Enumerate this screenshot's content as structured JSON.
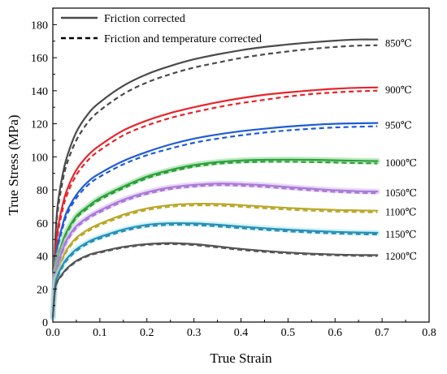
{
  "chart_data": {
    "type": "line",
    "xlabel": "True Strain",
    "ylabel": "True Stress (MPa)",
    "xlim": [
      0,
      0.8
    ],
    "ylim": [
      0,
      190
    ],
    "xticks": [
      "0.0",
      "0.1",
      "0.2",
      "0.3",
      "0.4",
      "0.5",
      "0.6",
      "0.7",
      "0.8"
    ],
    "yticks": [
      "0",
      "20",
      "40",
      "60",
      "80",
      "100",
      "120",
      "140",
      "160",
      "180"
    ],
    "grid": false,
    "legend_position": "top-left",
    "legend": [
      {
        "label": "Friction corrected",
        "style": "solid",
        "color": "#4a4a4a"
      },
      {
        "label": "Friction and temperature corrected",
        "style": "dashed",
        "color": "#000000"
      }
    ],
    "x": [
      0,
      0.005,
      0.01,
      0.02,
      0.03,
      0.05,
      0.075,
      0.1,
      0.15,
      0.2,
      0.25,
      0.3,
      0.35,
      0.4,
      0.45,
      0.5,
      0.55,
      0.6,
      0.65,
      0.69
    ],
    "series": [
      {
        "name": "850℃",
        "color": "#4a4a4a",
        "friction_corrected": [
          3,
          48,
          70,
          88,
          100,
          115,
          126,
          133,
          143,
          150,
          155,
          159,
          162,
          164.5,
          166.5,
          168,
          169.3,
          170.3,
          171,
          171
        ],
        "temperature_corrected": [
          3,
          46,
          66,
          84,
          96,
          110,
          121,
          128,
          138,
          145,
          150,
          154,
          157,
          159.8,
          162,
          163.8,
          165.3,
          166.5,
          167.3,
          167.5
        ]
      },
      {
        "name": "900℃",
        "color": "#e8242a",
        "friction_corrected": [
          3,
          38,
          55,
          70,
          80,
          92,
          101,
          107,
          116,
          122,
          126.5,
          130,
          133,
          135.5,
          137.5,
          139,
          140.2,
          141.2,
          141.8,
          142
        ],
        "temperature_corrected": [
          3,
          36,
          52,
          67,
          77,
          89,
          98,
          104,
          113,
          119,
          123.5,
          127,
          130,
          132.5,
          134.5,
          136.5,
          138,
          139,
          139.7,
          140
        ]
      },
      {
        "name": "950℃",
        "color": "#1f5bd8",
        "friction_corrected": [
          3,
          33,
          46,
          58,
          67,
          77,
          85,
          90,
          97.5,
          103,
          107.5,
          111,
          113.5,
          115.5,
          117,
          118.3,
          119.3,
          120,
          120.3,
          120.5
        ],
        "temperature_corrected": [
          3,
          31,
          44,
          56,
          65,
          75,
          83,
          88,
          95.5,
          101,
          105,
          108.5,
          111,
          113,
          114.7,
          116,
          117,
          117.8,
          118.2,
          118.5
        ]
      },
      {
        "name": "1000℃",
        "color": "#2e9e3a",
        "friction_corrected": [
          3,
          28,
          38,
          48,
          55,
          64,
          70,
          75,
          82,
          88,
          92,
          95,
          96.8,
          97.8,
          98.2,
          98.3,
          98.2,
          97.9,
          97.6,
          97.4
        ],
        "temperature_corrected": [
          3,
          27,
          37,
          47,
          54,
          63,
          69,
          74,
          81,
          87,
          91,
          94,
          95.8,
          96.6,
          97,
          97,
          96.8,
          96.5,
          96.2,
          96
        ]
      },
      {
        "name": "1050℃",
        "color": "#a97ad6",
        "friction_corrected": [
          3,
          26,
          34,
          43,
          50,
          58,
          63.5,
          67.5,
          74,
          78.5,
          81.5,
          83,
          83.8,
          83.5,
          82.8,
          81.7,
          80.7,
          79.8,
          79.2,
          79
        ],
        "temperature_corrected": [
          3,
          25,
          33,
          42,
          49,
          57,
          62.5,
          66.5,
          73,
          77.5,
          80.5,
          82,
          82.8,
          82.5,
          81.8,
          80.7,
          79.7,
          78.8,
          78.2,
          78
        ]
      },
      {
        "name": "1100℃",
        "color": "#b9a82a",
        "friction_corrected": [
          3,
          24,
          31,
          38,
          44,
          51,
          56,
          59.5,
          65,
          68.8,
          70.8,
          71.6,
          71.5,
          70.8,
          69.9,
          69.1,
          68.4,
          67.9,
          67.6,
          67.4
        ],
        "temperature_corrected": [
          3,
          23,
          30,
          37,
          43,
          50,
          55,
          58.5,
          64,
          67.8,
          69.8,
          70.6,
          70.5,
          69.8,
          68.9,
          68.1,
          67.4,
          66.9,
          66.6,
          66.4
        ]
      },
      {
        "name": "1150℃",
        "color": "#2a8fb5",
        "friction_corrected": [
          3,
          22,
          28,
          34,
          38.5,
          44,
          48.5,
          51.5,
          56,
          58.8,
          59.8,
          59.7,
          58.9,
          57.8,
          56.8,
          55.9,
          55.2,
          54.6,
          54.2,
          54
        ],
        "temperature_corrected": [
          3,
          21,
          27,
          33,
          37.5,
          43,
          47.5,
          50.5,
          55,
          57.8,
          58.8,
          58.7,
          57.9,
          56.8,
          55.8,
          54.9,
          54.2,
          53.6,
          53.2,
          53
        ]
      },
      {
        "name": "1200℃",
        "color": "#555555",
        "friction_corrected": [
          3,
          20,
          25,
          29,
          32.5,
          37,
          40.5,
          42.5,
          45.5,
          47.2,
          47.8,
          47.2,
          45.8,
          44.3,
          43.1,
          42.1,
          41.4,
          40.9,
          40.6,
          40.5
        ],
        "temperature_corrected": [
          3,
          19.5,
          24.5,
          28.5,
          32,
          36.5,
          40,
          42,
          45,
          46.7,
          47.2,
          46.6,
          45.2,
          43.7,
          42.5,
          41.6,
          40.9,
          40.4,
          40.1,
          40
        ]
      }
    ],
    "series_band_colors": {
      "1000℃": "#7fd88a",
      "1050℃": "#d5b8f0",
      "1150℃": "#a9e9f2"
    }
  }
}
